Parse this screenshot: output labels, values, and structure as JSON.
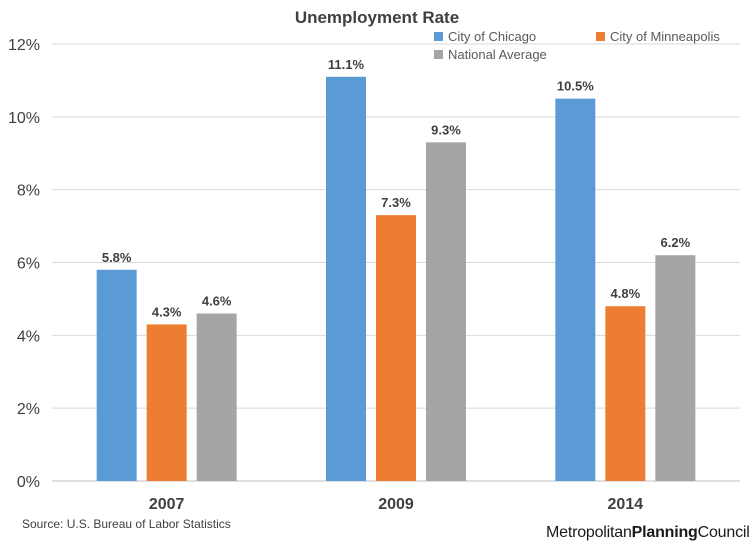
{
  "chart_data": {
    "type": "bar",
    "title": "Unemployment Rate",
    "categories": [
      "2007",
      "2009",
      "2014"
    ],
    "series": [
      {
        "name": "City of Chicago",
        "values": [
          5.8,
          11.1,
          10.5
        ],
        "labels": [
          "5.8%",
          "11.1%",
          "10.5%"
        ],
        "color": "#5b9bd5"
      },
      {
        "name": "City of Minneapolis",
        "values": [
          4.3,
          7.3,
          4.8
        ],
        "labels": [
          "4.3%",
          "7.3%",
          "4.8%"
        ],
        "color": "#ed7d31"
      },
      {
        "name": "National Average",
        "values": [
          4.6,
          9.3,
          6.2
        ],
        "labels": [
          "4.6%",
          "9.3%",
          "6.2%"
        ],
        "color": "#a5a5a5"
      }
    ],
    "ylim": [
      0,
      12
    ],
    "yticks": [
      "0%",
      "2%",
      "4%",
      "6%",
      "8%",
      "10%",
      "12%"
    ],
    "grid": true,
    "legend_position": "top-right"
  },
  "source": "Source: U.S. Bureau of Labor Statistics",
  "logo": {
    "part1": "Metropolitan",
    "part2": "Planning",
    "part3": "Council"
  }
}
